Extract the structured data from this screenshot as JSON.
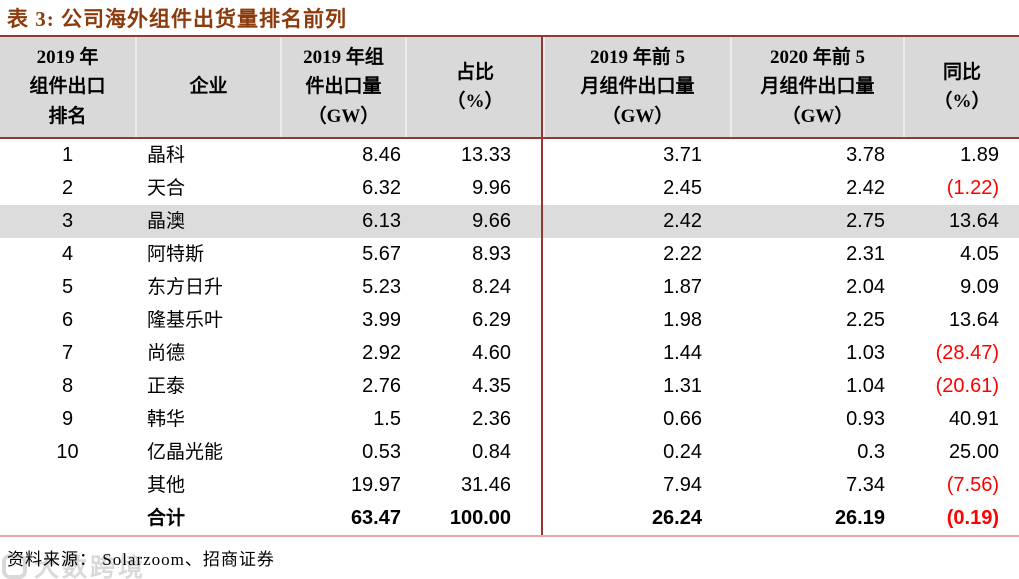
{
  "title": "表 3:  公司海外组件出货量排名前列",
  "table": {
    "headers": [
      "2019 年\n组件出口\n排名",
      "企业",
      "2019 年组\n件出口量\n（GW）",
      "占比\n（%）",
      "2019 年前 5\n月组件出口量\n（GW）",
      "2020 年前 5\n月组件出口量\n（GW）",
      "同比\n（%）"
    ],
    "rows": [
      [
        "1",
        "晶科",
        "8.46",
        "13.33",
        "3.71",
        "3.78",
        "1.89"
      ],
      [
        "2",
        "天合",
        "6.32",
        "9.96",
        "2.45",
        "2.42",
        "(1.22)"
      ],
      [
        "3",
        "晶澳",
        "6.13",
        "9.66",
        "2.42",
        "2.75",
        "13.64"
      ],
      [
        "4",
        "阿特斯",
        "5.67",
        "8.93",
        "2.22",
        "2.31",
        "4.05"
      ],
      [
        "5",
        "东方日升",
        "5.23",
        "8.24",
        "1.87",
        "2.04",
        "9.09"
      ],
      [
        "6",
        "隆基乐叶",
        "3.99",
        "6.29",
        "1.98",
        "2.25",
        "13.64"
      ],
      [
        "7",
        "尚德",
        "2.92",
        "4.60",
        "1.44",
        "1.03",
        "(28.47)"
      ],
      [
        "8",
        "正泰",
        "2.76",
        "4.35",
        "1.31",
        "1.04",
        "(20.61)"
      ],
      [
        "9",
        "韩华",
        "1.5",
        "2.36",
        "0.66",
        "0.93",
        "40.91"
      ],
      [
        "10",
        "亿晶光能",
        "0.53",
        "0.84",
        "0.24",
        "0.3",
        "25.00"
      ],
      [
        "",
        "其他",
        "19.97",
        "31.46",
        "7.94",
        "7.34",
        "(7.56)"
      ],
      [
        "",
        "合计",
        "63.47",
        "100.00",
        "26.24",
        "26.19",
        "(0.19)"
      ]
    ],
    "highlighted_row_index": 2,
    "total_row_index": 11
  },
  "source": "资料来源： Solarzoom、招商证券",
  "watermark": "大数跨境",
  "colors": {
    "title_text": "#8c3b0c",
    "border_dark": "#953735",
    "border_light": "#e9a7a2",
    "header_bg": "#d9d9d9",
    "highlight_bg": "#dcdcdc",
    "negative": "#ff0000"
  }
}
